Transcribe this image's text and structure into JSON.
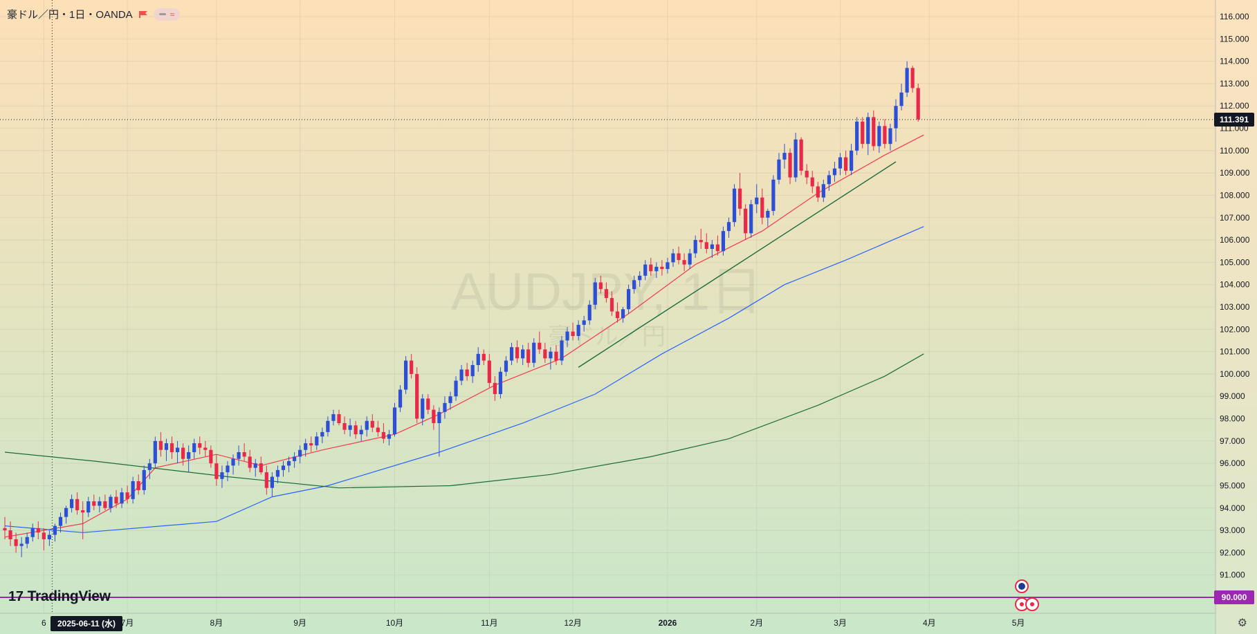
{
  "header": {
    "symbol_title": "豪ドル／円・1日・OANDA",
    "flag_icon": "red-flag-icon",
    "indicator_icon": "wave-icon",
    "indicator_symbol": "≈"
  },
  "watermark": {
    "main": "AUDJPY, 1日",
    "sub": "豪ドル／円"
  },
  "branding": {
    "logo_text": "TradingView",
    "logo_mark": "17"
  },
  "crosshair": {
    "date_label": "2025-06-11 (水)",
    "price_label": "111.391"
  },
  "marker_line": {
    "price_label": "90.000",
    "color": "#9c27b0"
  },
  "colors": {
    "bg_top": "#fde0b8",
    "bg_bottom": "#c9e7c9",
    "up": "#2d4fd6",
    "down": "#e8294a",
    "ma_fast": "#f2394f",
    "ma_mid": "#2962ff",
    "ma_slow": "#1b6b3a",
    "trendline": "#1b6b3a"
  },
  "chart_data": {
    "type": "candlestick",
    "symbol": "AUDJPY",
    "timeframe": "1日",
    "ylim": [
      90.0,
      116.0
    ],
    "y_ticks": [
      "91.000",
      "92.000",
      "93.000",
      "94.000",
      "95.000",
      "96.000",
      "97.000",
      "98.000",
      "99.000",
      "100.000",
      "101.000",
      "102.000",
      "103.000",
      "104.000",
      "105.000",
      "106.000",
      "107.000",
      "108.000",
      "109.000",
      "110.000",
      "111.000",
      "112.000",
      "113.000",
      "114.000",
      "115.000",
      "116.000"
    ],
    "x_ticks": [
      "6",
      "7月",
      "8月",
      "9月",
      "10月",
      "11月",
      "12月",
      "2026",
      "2月",
      "3月",
      "4月",
      "5月"
    ],
    "last_close": 111.391,
    "candles": [
      [
        0,
        93.1,
        93.6,
        92.6,
        93.0
      ],
      [
        1,
        93.0,
        93.4,
        92.3,
        92.6
      ],
      [
        2,
        92.6,
        92.9,
        92.0,
        92.3
      ],
      [
        3,
        92.3,
        92.7,
        91.8,
        92.4
      ],
      [
        4,
        92.4,
        92.9,
        92.2,
        92.7
      ],
      [
        5,
        92.7,
        93.3,
        92.5,
        93.1
      ],
      [
        6,
        93.1,
        93.4,
        92.6,
        92.9
      ],
      [
        7,
        92.9,
        93.1,
        92.1,
        92.6
      ],
      [
        8,
        92.6,
        93.0,
        92.3,
        92.8
      ],
      [
        9,
        92.8,
        93.3,
        92.5,
        93.2
      ],
      [
        10,
        93.2,
        93.8,
        92.9,
        93.6
      ],
      [
        11,
        93.6,
        94.1,
        93.3,
        94.0
      ],
      [
        12,
        94.0,
        94.6,
        93.8,
        94.4
      ],
      [
        13,
        94.4,
        94.7,
        93.7,
        93.9
      ],
      [
        14,
        93.9,
        94.3,
        92.6,
        93.8
      ],
      [
        15,
        93.8,
        94.5,
        93.6,
        94.3
      ],
      [
        16,
        94.3,
        94.6,
        93.9,
        94.1
      ],
      [
        17,
        94.1,
        94.5,
        93.8,
        94.3
      ],
      [
        18,
        94.3,
        94.6,
        93.9,
        94.0
      ],
      [
        19,
        94.0,
        94.6,
        93.8,
        94.5
      ],
      [
        20,
        94.5,
        94.8,
        94.0,
        94.2
      ],
      [
        21,
        94.2,
        94.9,
        94.0,
        94.7
      ],
      [
        22,
        94.7,
        95.0,
        94.2,
        94.4
      ],
      [
        23,
        94.4,
        95.4,
        94.2,
        95.2
      ],
      [
        24,
        95.2,
        95.5,
        94.6,
        94.8
      ],
      [
        25,
        94.8,
        95.9,
        94.6,
        95.7
      ],
      [
        26,
        95.7,
        96.2,
        95.3,
        96.0
      ],
      [
        27,
        96.0,
        97.2,
        95.8,
        97.0
      ],
      [
        28,
        97.0,
        97.4,
        96.3,
        96.6
      ],
      [
        29,
        96.6,
        97.1,
        96.1,
        96.9
      ],
      [
        30,
        96.9,
        97.2,
        96.2,
        96.5
      ],
      [
        31,
        96.5,
        97.0,
        96.0,
        96.7
      ],
      [
        32,
        96.7,
        96.9,
        95.9,
        96.2
      ],
      [
        33,
        96.2,
        96.8,
        95.6,
        96.5
      ],
      [
        34,
        96.5,
        97.1,
        96.2,
        96.9
      ],
      [
        35,
        96.9,
        97.2,
        96.4,
        96.7
      ],
      [
        36,
        96.7,
        97.0,
        96.3,
        96.6
      ],
      [
        37,
        96.6,
        96.8,
        95.8,
        96.0
      ],
      [
        38,
        96.0,
        96.4,
        95.0,
        95.3
      ],
      [
        39,
        95.3,
        95.9,
        94.9,
        95.6
      ],
      [
        40,
        95.6,
        96.1,
        95.2,
        95.9
      ],
      [
        41,
        95.9,
        96.4,
        95.5,
        96.2
      ],
      [
        42,
        96.2,
        96.8,
        95.9,
        96.5
      ],
      [
        43,
        96.5,
        96.9,
        96.1,
        96.3
      ],
      [
        44,
        96.3,
        96.6,
        95.6,
        95.8
      ],
      [
        45,
        95.8,
        96.2,
        95.4,
        96.0
      ],
      [
        46,
        96.0,
        96.3,
        95.5,
        95.6
      ],
      [
        47,
        95.6,
        95.9,
        94.6,
        94.9
      ],
      [
        48,
        94.9,
        95.6,
        94.5,
        95.4
      ],
      [
        49,
        95.4,
        95.9,
        95.1,
        95.7
      ],
      [
        50,
        95.7,
        96.1,
        95.4,
        95.9
      ],
      [
        51,
        95.9,
        96.3,
        95.6,
        96.1
      ],
      [
        52,
        96.1,
        96.5,
        95.8,
        96.3
      ],
      [
        53,
        96.3,
        96.8,
        96.0,
        96.6
      ],
      [
        54,
        96.6,
        97.1,
        96.3,
        96.9
      ],
      [
        55,
        96.9,
        97.2,
        96.5,
        96.8
      ],
      [
        56,
        96.8,
        97.4,
        96.6,
        97.2
      ],
      [
        57,
        97.2,
        97.6,
        96.9,
        97.4
      ],
      [
        58,
        97.4,
        98.1,
        97.2,
        97.9
      ],
      [
        59,
        97.9,
        98.4,
        97.7,
        98.2
      ],
      [
        60,
        98.2,
        98.4,
        97.7,
        97.8
      ],
      [
        61,
        97.8,
        98.1,
        97.3,
        97.5
      ],
      [
        62,
        97.5,
        98.0,
        97.2,
        97.7
      ],
      [
        63,
        97.7,
        97.9,
        97.1,
        97.3
      ],
      [
        64,
        97.3,
        97.7,
        97.0,
        97.5
      ],
      [
        65,
        97.5,
        98.1,
        97.2,
        97.9
      ],
      [
        66,
        97.9,
        98.2,
        97.4,
        97.6
      ],
      [
        67,
        97.6,
        97.9,
        97.2,
        97.4
      ],
      [
        68,
        97.4,
        97.8,
        96.9,
        97.1
      ],
      [
        69,
        97.1,
        97.5,
        96.8,
        97.3
      ],
      [
        70,
        97.3,
        98.7,
        97.2,
        98.5
      ],
      [
        71,
        98.5,
        99.5,
        98.3,
        99.3
      ],
      [
        72,
        99.3,
        100.8,
        99.1,
        100.6
      ],
      [
        73,
        100.6,
        100.9,
        99.8,
        100.0
      ],
      [
        74,
        100.0,
        100.3,
        97.8,
        98.0
      ],
      [
        75,
        98.0,
        99.1,
        97.7,
        98.9
      ],
      [
        76,
        98.9,
        99.1,
        98.2,
        98.4
      ],
      [
        77,
        98.4,
        98.6,
        97.5,
        97.8
      ],
      [
        78,
        97.8,
        98.5,
        96.3,
        98.3
      ],
      [
        79,
        98.3,
        99.0,
        98.0,
        98.7
      ],
      [
        80,
        98.7,
        99.2,
        98.4,
        99.0
      ],
      [
        81,
        99.0,
        99.9,
        98.8,
        99.7
      ],
      [
        82,
        99.7,
        100.4,
        99.5,
        100.2
      ],
      [
        83,
        100.2,
        100.5,
        99.7,
        99.9
      ],
      [
        84,
        99.9,
        100.6,
        99.6,
        100.4
      ],
      [
        85,
        100.4,
        101.2,
        100.1,
        100.9
      ],
      [
        86,
        100.9,
        101.1,
        100.4,
        100.6
      ],
      [
        87,
        100.6,
        100.9,
        99.4,
        99.6
      ],
      [
        88,
        99.6,
        99.9,
        98.8,
        99.1
      ],
      [
        89,
        99.1,
        100.3,
        98.9,
        100.1
      ],
      [
        90,
        100.1,
        100.8,
        99.9,
        100.6
      ],
      [
        91,
        100.6,
        101.4,
        100.4,
        101.2
      ],
      [
        92,
        101.2,
        101.5,
        100.5,
        100.7
      ],
      [
        93,
        100.7,
        101.3,
        100.4,
        101.1
      ],
      [
        94,
        101.1,
        101.4,
        100.3,
        100.5
      ],
      [
        95,
        100.5,
        101.6,
        100.3,
        101.4
      ],
      [
        96,
        101.4,
        101.9,
        100.9,
        101.1
      ],
      [
        97,
        101.1,
        101.4,
        100.5,
        100.7
      ],
      [
        98,
        100.7,
        101.2,
        100.2,
        101.0
      ],
      [
        99,
        101.0,
        101.3,
        100.4,
        100.6
      ],
      [
        100,
        100.6,
        101.7,
        100.4,
        101.5
      ],
      [
        101,
        101.5,
        102.1,
        101.2,
        101.9
      ],
      [
        102,
        101.9,
        102.3,
        101.5,
        101.7
      ],
      [
        103,
        101.7,
        102.4,
        101.5,
        102.2
      ],
      [
        104,
        102.2,
        102.6,
        101.9,
        102.4
      ],
      [
        105,
        102.4,
        103.3,
        102.2,
        103.1
      ],
      [
        106,
        103.1,
        104.3,
        102.9,
        104.1
      ],
      [
        107,
        104.1,
        104.4,
        103.6,
        103.8
      ],
      [
        108,
        103.8,
        104.1,
        103.2,
        103.4
      ],
      [
        109,
        103.4,
        103.7,
        102.6,
        102.8
      ],
      [
        110,
        102.8,
        103.2,
        102.3,
        102.5
      ],
      [
        111,
        102.5,
        103.0,
        102.3,
        102.9
      ],
      [
        112,
        102.9,
        104.0,
        102.7,
        103.8
      ],
      [
        113,
        103.8,
        104.4,
        103.6,
        104.2
      ],
      [
        114,
        104.2,
        104.6,
        103.9,
        104.4
      ],
      [
        115,
        104.4,
        105.1,
        104.2,
        104.9
      ],
      [
        116,
        104.9,
        105.2,
        104.4,
        104.6
      ],
      [
        117,
        104.6,
        105.0,
        104.3,
        104.8
      ],
      [
        118,
        104.8,
        105.1,
        104.4,
        104.7
      ],
      [
        119,
        104.7,
        105.2,
        104.5,
        105.0
      ],
      [
        120,
        105.0,
        105.6,
        104.8,
        105.4
      ],
      [
        121,
        105.4,
        105.7,
        104.9,
        105.1
      ],
      [
        122,
        105.1,
        105.4,
        104.6,
        104.9
      ],
      [
        123,
        104.9,
        105.6,
        104.7,
        105.4
      ],
      [
        124,
        105.4,
        106.2,
        105.2,
        106.0
      ],
      [
        125,
        106.0,
        106.5,
        105.6,
        105.9
      ],
      [
        126,
        105.9,
        106.3,
        105.4,
        105.6
      ],
      [
        127,
        105.6,
        106.0,
        105.2,
        105.8
      ],
      [
        128,
        105.8,
        106.2,
        105.3,
        105.5
      ],
      [
        129,
        105.5,
        106.6,
        105.3,
        106.4
      ],
      [
        130,
        106.4,
        107.0,
        106.1,
        106.8
      ],
      [
        131,
        106.8,
        108.5,
        106.6,
        108.3
      ],
      [
        132,
        108.3,
        109.0,
        107.1,
        107.4
      ],
      [
        133,
        107.4,
        107.6,
        106.0,
        106.3
      ],
      [
        134,
        106.3,
        107.8,
        106.1,
        107.6
      ],
      [
        135,
        107.6,
        108.5,
        107.2,
        107.9
      ],
      [
        136,
        107.9,
        108.3,
        106.7,
        107.0
      ],
      [
        137,
        107.0,
        107.4,
        106.6,
        107.3
      ],
      [
        138,
        107.3,
        108.9,
        107.1,
        108.7
      ],
      [
        139,
        108.7,
        109.9,
        108.5,
        109.6
      ],
      [
        140,
        109.6,
        110.3,
        109.2,
        109.9
      ],
      [
        141,
        109.9,
        110.1,
        108.5,
        108.8
      ],
      [
        142,
        108.8,
        110.8,
        108.6,
        110.5
      ],
      [
        143,
        110.5,
        110.6,
        108.9,
        109.1
      ],
      [
        144,
        109.1,
        109.4,
        108.5,
        108.8
      ],
      [
        145,
        108.8,
        109.1,
        108.1,
        108.4
      ],
      [
        146,
        108.4,
        108.6,
        107.7,
        107.9
      ],
      [
        147,
        107.9,
        108.7,
        107.7,
        108.5
      ],
      [
        148,
        108.5,
        109.1,
        108.2,
        108.9
      ],
      [
        149,
        108.9,
        109.5,
        108.6,
        109.2
      ],
      [
        150,
        109.2,
        109.9,
        108.9,
        109.7
      ],
      [
        151,
        109.7,
        110.0,
        108.9,
        109.1
      ],
      [
        152,
        109.1,
        110.3,
        108.9,
        110.0
      ],
      [
        153,
        110.0,
        111.5,
        109.8,
        111.3
      ],
      [
        154,
        111.3,
        111.5,
        110.1,
        110.3
      ],
      [
        155,
        110.3,
        111.7,
        109.8,
        111.5
      ],
      [
        156,
        111.5,
        111.8,
        110.0,
        110.2
      ],
      [
        157,
        110.2,
        111.3,
        109.9,
        111.1
      ],
      [
        158,
        111.1,
        111.4,
        110.1,
        110.3
      ],
      [
        159,
        110.3,
        111.2,
        110.0,
        111.0
      ],
      [
        160,
        111.0,
        112.3,
        110.4,
        112.0
      ],
      [
        161,
        112.0,
        113.0,
        111.8,
        112.6
      ],
      [
        162,
        112.6,
        114.0,
        112.4,
        113.7
      ],
      [
        163,
        113.7,
        113.8,
        112.6,
        112.8
      ],
      [
        164,
        112.8,
        113.0,
        111.3,
        111.4
      ]
    ],
    "moving_averages": [
      {
        "name": "ma_fast",
        "points": [
          [
            0,
            92.7
          ],
          [
            14,
            93.3
          ],
          [
            22,
            94.4
          ],
          [
            27,
            95.8
          ],
          [
            38,
            96.4
          ],
          [
            46,
            95.9
          ],
          [
            57,
            96.6
          ],
          [
            70,
            97.3
          ],
          [
            78,
            98.2
          ],
          [
            88,
            99.5
          ],
          [
            100,
            100.7
          ],
          [
            112,
            102.7
          ],
          [
            124,
            104.9
          ],
          [
            136,
            106.4
          ],
          [
            146,
            108.1
          ],
          [
            158,
            109.8
          ],
          [
            165,
            110.7
          ]
        ]
      },
      {
        "name": "ma_mid",
        "points": [
          [
            0,
            93.2
          ],
          [
            14,
            92.9
          ],
          [
            38,
            93.4
          ],
          [
            48,
            94.5
          ],
          [
            58,
            95.0
          ],
          [
            78,
            96.5
          ],
          [
            93,
            97.8
          ],
          [
            106,
            99.1
          ],
          [
            118,
            100.9
          ],
          [
            130,
            102.5
          ],
          [
            140,
            104.0
          ],
          [
            151,
            105.1
          ],
          [
            165,
            106.6
          ]
        ]
      },
      {
        "name": "ma_slow",
        "points": [
          [
            0,
            96.5
          ],
          [
            16,
            96.1
          ],
          [
            40,
            95.4
          ],
          [
            60,
            94.9
          ],
          [
            80,
            95.0
          ],
          [
            98,
            95.5
          ],
          [
            116,
            96.3
          ],
          [
            130,
            97.1
          ],
          [
            146,
            98.6
          ],
          [
            158,
            99.9
          ],
          [
            165,
            100.9
          ]
        ]
      }
    ],
    "trendline": {
      "start": [
        103,
        100.3
      ],
      "end": [
        160,
        109.5
      ]
    }
  }
}
